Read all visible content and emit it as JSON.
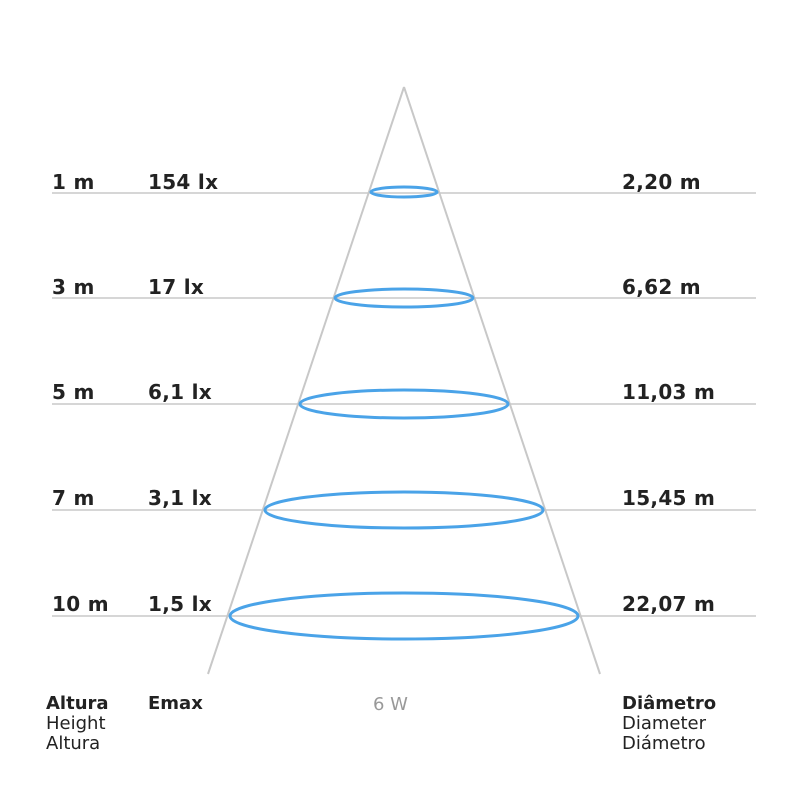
{
  "rows": [
    {
      "height": "1 m",
      "emax": "154 lx",
      "diameter": "2,20 m"
    },
    {
      "height": "3 m",
      "emax": "17 lx",
      "diameter": "6,62 m"
    },
    {
      "height": "5 m",
      "emax": "6,1 lx",
      "diameter": "11,03 m"
    },
    {
      "height": "7 m",
      "emax": "3,1 lx",
      "diameter": "15,45 m"
    },
    {
      "height": "10 m",
      "emax": "1,5 lx",
      "diameter": "22,07 m"
    }
  ],
  "footer": {
    "height_title": "Altura",
    "height_en": "Height",
    "height_pt": "Altura",
    "emax_title": "Emax",
    "power": "6 W",
    "diameter_title": "Diâmetro",
    "diameter_en": "Diameter",
    "diameter_es": "Diámetro"
  },
  "colors": {
    "ellipse": "#4aa3e8",
    "lines": "#c8c8c8",
    "text": "#222222",
    "power_text": "#999999"
  }
}
